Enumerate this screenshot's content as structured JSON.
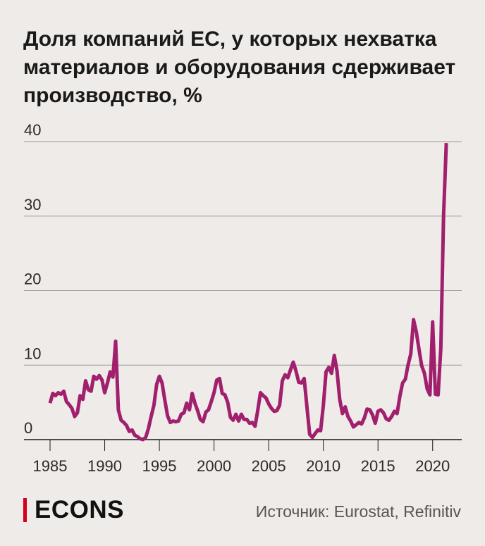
{
  "title": "Доля компаний ЕС, у которых нехватка материалов и оборудования сдерживает производство, %",
  "brand": {
    "logo_text": "ECONS",
    "accent_color": "#d6001c"
  },
  "source": "Источник: Eurostat, Refinitiv",
  "line_color": "#a0206e",
  "chart_data": {
    "type": "line",
    "title": "Доля компаний ЕС, у которых нехватка материалов и оборудования сдерживает производство, %",
    "xlabel": "",
    "ylabel": "",
    "xlim": [
      1985,
      2021.5
    ],
    "ylim": [
      0,
      40
    ],
    "x_ticks": [
      1985,
      1990,
      1995,
      2000,
      2005,
      2010,
      2015,
      2020
    ],
    "x_tick_labels": [
      "1985",
      "1990",
      "1995",
      "2000",
      "2005",
      "2010",
      "2015",
      "2020"
    ],
    "y_ticks": [
      0,
      10,
      20,
      30,
      40
    ],
    "y_tick_labels": [
      "0",
      "10",
      "20",
      "30",
      "40"
    ],
    "grid": true,
    "series": [
      {
        "points": [
          [
            1985.0,
            4.9
          ],
          [
            1985.25,
            6.2
          ],
          [
            1985.5,
            5.9
          ],
          [
            1985.75,
            6.3
          ],
          [
            1986.0,
            6.1
          ],
          [
            1986.25,
            6.5
          ],
          [
            1986.5,
            5.1
          ],
          [
            1986.75,
            4.7
          ],
          [
            1987.0,
            4.2
          ],
          [
            1987.25,
            3.1
          ],
          [
            1987.5,
            3.6
          ],
          [
            1987.75,
            5.9
          ],
          [
            1988.0,
            5.4
          ],
          [
            1988.25,
            7.9
          ],
          [
            1988.5,
            6.7
          ],
          [
            1988.75,
            6.5
          ],
          [
            1989.0,
            8.5
          ],
          [
            1989.25,
            8.1
          ],
          [
            1989.5,
            8.6
          ],
          [
            1989.75,
            8.0
          ],
          [
            1990.0,
            6.3
          ],
          [
            1990.25,
            7.6
          ],
          [
            1990.5,
            9.1
          ],
          [
            1990.75,
            8.4
          ],
          [
            1991.0,
            13.2
          ],
          [
            1991.25,
            4.0
          ],
          [
            1991.5,
            2.6
          ],
          [
            1991.75,
            2.3
          ],
          [
            1992.0,
            1.9
          ],
          [
            1992.25,
            1.1
          ],
          [
            1992.5,
            1.3
          ],
          [
            1992.75,
            0.6
          ],
          [
            1993.0,
            0.4
          ],
          [
            1993.25,
            0.1
          ],
          [
            1993.5,
            0.0
          ],
          [
            1993.75,
            0.3
          ],
          [
            1994.0,
            1.5
          ],
          [
            1994.25,
            3.1
          ],
          [
            1994.5,
            4.6
          ],
          [
            1994.75,
            7.4
          ],
          [
            1995.0,
            8.5
          ],
          [
            1995.25,
            7.6
          ],
          [
            1995.5,
            5.3
          ],
          [
            1995.75,
            3.2
          ],
          [
            1996.0,
            2.3
          ],
          [
            1996.25,
            2.5
          ],
          [
            1996.5,
            2.4
          ],
          [
            1996.75,
            2.5
          ],
          [
            1997.0,
            3.4
          ],
          [
            1997.25,
            3.6
          ],
          [
            1997.5,
            4.9
          ],
          [
            1997.75,
            4.0
          ],
          [
            1998.0,
            6.2
          ],
          [
            1998.25,
            4.9
          ],
          [
            1998.5,
            3.9
          ],
          [
            1998.75,
            2.7
          ],
          [
            1999.0,
            2.4
          ],
          [
            1999.25,
            3.7
          ],
          [
            1999.5,
            4.0
          ],
          [
            1999.75,
            5.1
          ],
          [
            2000.0,
            6.3
          ],
          [
            2000.25,
            8.0
          ],
          [
            2000.5,
            8.2
          ],
          [
            2000.75,
            6.2
          ],
          [
            2001.0,
            6.0
          ],
          [
            2001.25,
            5.0
          ],
          [
            2001.5,
            3.0
          ],
          [
            2001.75,
            2.6
          ],
          [
            2002.0,
            3.4
          ],
          [
            2002.25,
            2.5
          ],
          [
            2002.5,
            3.4
          ],
          [
            2002.75,
            2.7
          ],
          [
            2003.0,
            2.7
          ],
          [
            2003.25,
            2.2
          ],
          [
            2003.5,
            2.3
          ],
          [
            2003.75,
            1.8
          ],
          [
            2004.0,
            3.9
          ],
          [
            2004.25,
            6.3
          ],
          [
            2004.5,
            5.9
          ],
          [
            2004.75,
            5.6
          ],
          [
            2005.0,
            4.8
          ],
          [
            2005.25,
            4.2
          ],
          [
            2005.5,
            3.8
          ],
          [
            2005.75,
            3.9
          ],
          [
            2006.0,
            4.6
          ],
          [
            2006.25,
            7.9
          ],
          [
            2006.5,
            8.7
          ],
          [
            2006.75,
            8.3
          ],
          [
            2007.0,
            9.4
          ],
          [
            2007.25,
            10.4
          ],
          [
            2007.5,
            9.2
          ],
          [
            2007.75,
            7.7
          ],
          [
            2008.0,
            7.6
          ],
          [
            2008.25,
            8.2
          ],
          [
            2008.5,
            4.4
          ],
          [
            2008.75,
            0.7
          ],
          [
            2009.0,
            0.3
          ],
          [
            2009.25,
            0.8
          ],
          [
            2009.5,
            1.3
          ],
          [
            2009.75,
            1.2
          ],
          [
            2010.0,
            4.6
          ],
          [
            2010.25,
            9.1
          ],
          [
            2010.5,
            9.7
          ],
          [
            2010.75,
            8.9
          ],
          [
            2011.0,
            11.3
          ],
          [
            2011.25,
            9.2
          ],
          [
            2011.5,
            5.4
          ],
          [
            2011.75,
            3.5
          ],
          [
            2012.0,
            4.4
          ],
          [
            2012.25,
            3.1
          ],
          [
            2012.5,
            2.5
          ],
          [
            2012.75,
            1.7
          ],
          [
            2013.0,
            2.0
          ],
          [
            2013.25,
            2.3
          ],
          [
            2013.5,
            2.1
          ],
          [
            2013.75,
            2.9
          ],
          [
            2014.0,
            4.1
          ],
          [
            2014.25,
            4.0
          ],
          [
            2014.5,
            3.3
          ],
          [
            2014.75,
            2.2
          ],
          [
            2015.0,
            3.8
          ],
          [
            2015.25,
            4.0
          ],
          [
            2015.5,
            3.6
          ],
          [
            2015.75,
            2.8
          ],
          [
            2016.0,
            2.6
          ],
          [
            2016.25,
            3.1
          ],
          [
            2016.5,
            3.8
          ],
          [
            2016.75,
            3.5
          ],
          [
            2017.0,
            5.8
          ],
          [
            2017.25,
            7.6
          ],
          [
            2017.5,
            8.1
          ],
          [
            2017.75,
            10.0
          ],
          [
            2018.0,
            11.5
          ],
          [
            2018.25,
            16.1
          ],
          [
            2018.5,
            14.5
          ],
          [
            2018.75,
            12.1
          ],
          [
            2019.0,
            9.9
          ],
          [
            2019.25,
            8.9
          ],
          [
            2019.5,
            6.8
          ],
          [
            2019.75,
            6.0
          ],
          [
            2020.0,
            15.8
          ],
          [
            2020.25,
            6.1
          ],
          [
            2020.5,
            6.0
          ],
          [
            2020.75,
            12.4
          ],
          [
            2021.0,
            30.0
          ],
          [
            2021.25,
            39.8
          ]
        ]
      }
    ]
  }
}
